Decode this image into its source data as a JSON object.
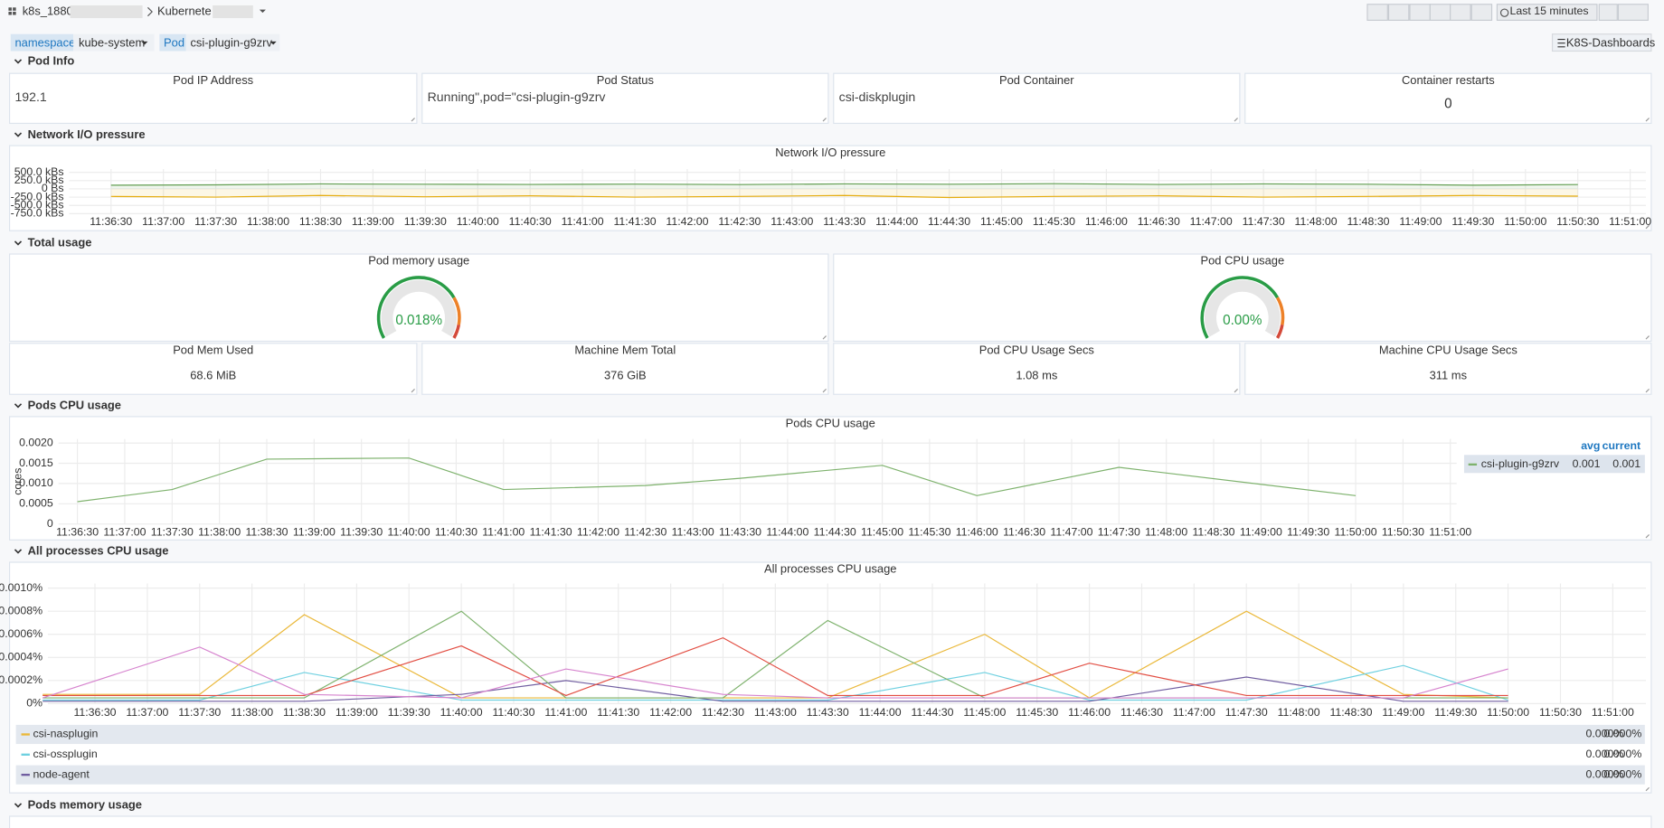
{
  "header": {
    "folder": "k8s_1880",
    "dashboard": "Kubernete",
    "time_range": "Last 15 minutes",
    "link": "K8S-Dashboards"
  },
  "variables": [
    {
      "label": "namespace",
      "value": "kube-system"
    },
    {
      "label": "Pod",
      "value": "csi-plugin-g9zrv"
    }
  ],
  "rows": [
    {
      "title": "Pod Info",
      "panels": [
        {
          "title": "Pod IP Address",
          "text": "192.1"
        },
        {
          "title": "Pod Status",
          "text": "Running\",pod=\"csi-plugin-g9zrv"
        },
        {
          "title": "Pod Container",
          "text": "csi-diskplugin"
        },
        {
          "title": "Container restarts",
          "value": 0
        }
      ]
    },
    {
      "title": "Network I/O pressure",
      "panels": [
        {
          "title": "Network I/O pressure",
          "chart": {
            "type": "line",
            "fill": true,
            "x": [
              "11:36:30",
              "11:37:30",
              "11:38:30",
              "11:39:30",
              "11:40:30",
              "11:41:30",
              "11:42:30",
              "11:43:30",
              "11:44:30",
              "11:45:30",
              "11:46:30",
              "11:47:30",
              "11:48:30",
              "11:49:30",
              "11:50:30"
            ],
            "series": [
              {
                "color": "#629e51",
                "values": [
                  110,
                  120,
                  150,
                  140,
                  135,
                  145,
                  130,
                  150,
                  140,
                  155,
                  135,
                  150,
                  140,
                  110,
                  130
                ]
              },
              {
                "color": "#e5ac0e",
                "values": [
                  -230,
                  -250,
                  -200,
                  -240,
                  -210,
                  -250,
                  -230,
                  -200,
                  -260,
                  -230,
                  -210,
                  -250,
                  -230,
                  -200,
                  -220
                ]
              }
            ],
            "xlim": [
              "11:36:06",
              "11:51:09"
            ],
            "xticks": [
              "11:36:30",
              "11:37:00",
              "11:37:30",
              "11:38:00",
              "11:38:30",
              "11:39:00",
              "11:39:30",
              "11:40:00",
              "11:40:30",
              "11:41:00",
              "11:41:30",
              "11:42:00",
              "11:42:30",
              "11:43:00",
              "11:43:30",
              "11:44:00",
              "11:44:30",
              "11:45:00",
              "11:45:30",
              "11:46:00",
              "11:46:30",
              "11:47:00",
              "11:47:30",
              "11:48:00",
              "11:48:30",
              "11:49:00",
              "11:49:30",
              "11:50:00",
              "11:50:30",
              "11:51:00"
            ],
            "ylim": [
              -750,
              600
            ],
            "yticks": [
              {
                "value": 500,
                "label": "500.0 kBs"
              },
              {
                "value": 250,
                "label": "250.0 kBs"
              },
              {
                "value": 0,
                "label": "0 Bs"
              },
              {
                "value": -250,
                "label": "-250.0 kBs"
              },
              {
                "value": -500,
                "label": "-500.0 kBs"
              },
              {
                "value": -750,
                "label": "-750.0 kBs"
              }
            ],
            "grid": true
          }
        }
      ]
    },
    {
      "title": "Total usage",
      "panels": [
        {
          "title": "Pod memory usage",
          "gauge": {
            "value": 0.018,
            "value_label": "0.018%",
            "range": [
              0,
              100
            ],
            "colors": [
              "#299c46",
              "#ed8128",
              "#d44a3a"
            ]
          }
        },
        {
          "title": "Pod CPU usage",
          "gauge": {
            "value": 0,
            "value_label": "0.00%",
            "range": [
              0,
              100
            ],
            "colors": [
              "#299c46",
              "#ed8128",
              "#d44a3a"
            ]
          }
        },
        {
          "title": "Pod Mem Used",
          "text": "68.6 MiB"
        },
        {
          "title": "Machine Mem Total",
          "text": "376 GiB"
        },
        {
          "title": "Pod CPU Usage Secs",
          "text": "1.08 ms"
        },
        {
          "title": "Machine CPU Usage Secs",
          "text": "311 ms"
        }
      ]
    },
    {
      "title": "Pods CPU usage",
      "panels": [
        {
          "title": "Pods CPU usage",
          "chart": {
            "type": "line",
            "ylabel": "cores",
            "x": [
              "11:36:30",
              "11:37:30",
              "11:38:30",
              "11:40:00",
              "11:41:00",
              "11:42:30",
              "11:43:30",
              "11:45:00",
              "11:46:00",
              "11:47:30",
              "11:50:00"
            ],
            "series": [
              {
                "name": "csi-plugin-g9zrv",
                "color": "#7eb26d",
                "values": [
                  0.00055,
                  0.00085,
                  0.0016,
                  0.00163,
                  0.00085,
                  0.00095,
                  0.00113,
                  0.00145,
                  0.0007,
                  0.0014,
                  0.0007
                ],
                "avg": 0.001,
                "current": 0.001
              }
            ],
            "legend_columns": [
              "avg",
              "current"
            ],
            "xlim": [
              "11:36:18",
              "11:51:04"
            ],
            "xticks": [
              "11:36:30",
              "11:37:00",
              "11:37:30",
              "11:38:00",
              "11:38:30",
              "11:39:00",
              "11:39:30",
              "11:40:00",
              "11:40:30",
              "11:41:00",
              "11:41:30",
              "11:42:00",
              "11:42:30",
              "11:43:00",
              "11:43:30",
              "11:44:00",
              "11:44:30",
              "11:45:00",
              "11:45:30",
              "11:46:00",
              "11:46:30",
              "11:47:00",
              "11:47:30",
              "11:48:00",
              "11:48:30",
              "11:49:00",
              "11:49:30",
              "11:50:00",
              "11:50:30",
              "11:51:00"
            ],
            "ylim": [
              0,
              0.0021
            ],
            "yticks": [
              {
                "value": 0.002,
                "label": "0.0020"
              },
              0.0015,
              {
                "value": 0.001,
                "label": "0.0010"
              },
              0.0005,
              0
            ],
            "grid": true
          }
        }
      ]
    },
    {
      "title": "All processes CPU usage",
      "panels": [
        {
          "title": "All processes CPU usage",
          "chart": {
            "type": "line",
            "x": [
              "11:36:00",
              "11:37:30",
              "11:38:30",
              "11:40:00",
              "11:41:00",
              "11:42:30",
              "11:43:30",
              "11:45:00",
              "11:46:00",
              "11:47:30",
              "11:49:00",
              "11:50:00"
            ],
            "series": [
              {
                "name": "csi-nasplugin",
                "color": "#eab839",
                "values": [
                  8e-05,
                  8e-05,
                  0.00077,
                  5e-05,
                  5e-05,
                  5e-05,
                  5e-05,
                  0.0006,
                  5e-05,
                  0.0008,
                  8e-05,
                  5e-05
                ],
                "legend_values": [
                  "0.000%",
                  "0.000%"
                ]
              },
              {
                "name": "csi-ossplugin",
                "color": "#6ed0e0",
                "values": [
                  3e-05,
                  3e-05,
                  0.00027,
                  3e-05,
                  3e-05,
                  3e-05,
                  3e-05,
                  0.00027,
                  3e-05,
                  3e-05,
                  0.00033,
                  3e-05
                ],
                "legend_values": [
                  "0.000%",
                  "0.000%"
                ]
              },
              {
                "name": "node-agent",
                "color": "#705da0",
                "values": [
                  2e-05,
                  2e-05,
                  2e-05,
                  8e-05,
                  0.0002,
                  2e-05,
                  2e-05,
                  2e-05,
                  2e-05,
                  0.00023,
                  2e-05,
                  2e-05
                ],
                "legend_values": [
                  "0.000%",
                  "0.000%"
                ]
              },
              {
                "color": "#7eb26d",
                "values": [
                  5e-05,
                  5e-05,
                  5e-05,
                  0.0008,
                  5e-05,
                  5e-05,
                  0.00072,
                  5e-05,
                  5e-05,
                  5e-05,
                  5e-05,
                  5e-05
                ]
              },
              {
                "color": "#e24d42",
                "values": [
                  7e-05,
                  7e-05,
                  7e-05,
                  0.0005,
                  7e-05,
                  0.00057,
                  7e-05,
                  7e-05,
                  0.00035,
                  7e-05,
                  7e-05,
                  7e-05
                ]
              },
              {
                "color": "#d683ce",
                "values": [
                  5e-05,
                  0.00049,
                  8e-05,
                  5e-05,
                  0.0003,
                  8e-05,
                  5e-05,
                  5e-05,
                  5e-05,
                  5e-05,
                  5e-05,
                  0.0003
                ]
              }
            ],
            "xlim": [
              "11:36:03",
              "11:51:19"
            ],
            "xticks": [
              "11:36:30",
              "11:37:00",
              "11:37:30",
              "11:38:00",
              "11:38:30",
              "11:39:00",
              "11:39:30",
              "11:40:00",
              "11:40:30",
              "11:41:00",
              "11:41:30",
              "11:42:00",
              "11:42:30",
              "11:43:00",
              "11:43:30",
              "11:44:00",
              "11:44:30",
              "11:45:00",
              "11:45:30",
              "11:46:00",
              "11:46:30",
              "11:47:00",
              "11:47:30",
              "11:48:00",
              "11:48:30",
              "11:49:00",
              "11:49:30",
              "11:50:00",
              "11:50:30",
              "11:51:00"
            ],
            "ylim": [
              0,
              0.00104
            ],
            "yticks": [
              {
                "value": 0.001,
                "label": "0.0010%"
              },
              {
                "value": 0.0008,
                "label": "0.0008%"
              },
              {
                "value": 0.0006,
                "label": "0.0006%"
              },
              {
                "value": 0.0004,
                "label": "0.0004%"
              },
              {
                "value": 0.0002,
                "label": "0.0002%"
              },
              {
                "value": 0,
                "label": "0%"
              }
            ],
            "grid": true
          }
        }
      ]
    },
    {
      "title": "Pods memory usage"
    }
  ]
}
